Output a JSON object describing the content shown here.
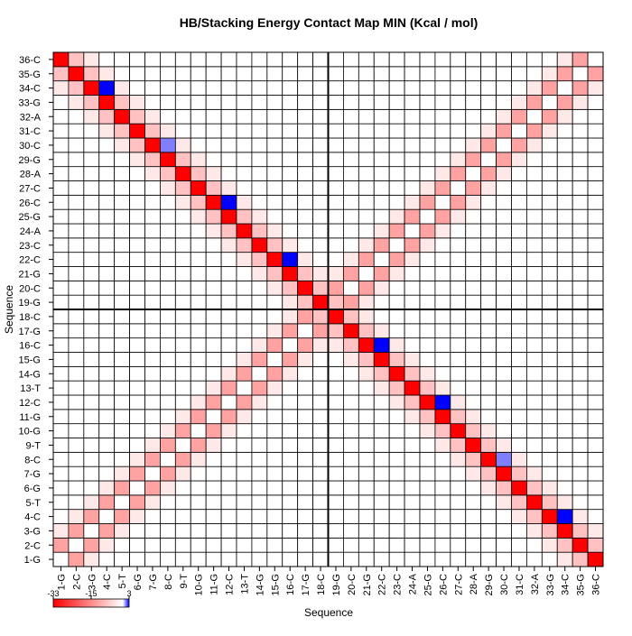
{
  "chart_data": {
    "type": "heatmap",
    "title": "HB/Stacking Energy Contact Map MIN (Kcal / mol)",
    "x_label": "Sequence",
    "y_label": "Sequence",
    "categories": [
      "1-G",
      "2-C",
      "3-G",
      "4-C",
      "5-T",
      "6-G",
      "7-G",
      "8-C",
      "9-T",
      "10-G",
      "11-G",
      "12-C",
      "13-T",
      "14-G",
      "15-G",
      "16-C",
      "17-G",
      "18-C",
      "19-G",
      "20-C",
      "21-G",
      "22-C",
      "23-C",
      "24-A",
      "25-G",
      "26-C",
      "27-C",
      "28-A",
      "29-G",
      "30-C",
      "31-C",
      "32-A",
      "33-G",
      "34-C",
      "35-G",
      "36-C"
    ],
    "zlim": [
      -33,
      3
    ],
    "zticks": [
      -33,
      -15,
      3
    ],
    "low_color": "#ff0000",
    "mid_color": "#ffffff",
    "high_color": "#0000ff",
    "values": [
      [
        0,
        -12,
        -3,
        0,
        0,
        0,
        0,
        0,
        0,
        0,
        0,
        0,
        0,
        0,
        0,
        0,
        0,
        0,
        0,
        0,
        0,
        0,
        0,
        0,
        0,
        0,
        0,
        0,
        0,
        0,
        0,
        0,
        0,
        -3,
        -8,
        -33
      ],
      [
        -12,
        0,
        -12,
        -3,
        0,
        0,
        0,
        0,
        0,
        0,
        0,
        0,
        0,
        0,
        0,
        0,
        0,
        0,
        0,
        0,
        0,
        0,
        0,
        0,
        0,
        0,
        0,
        0,
        0,
        0,
        0,
        0,
        -3,
        -8,
        -33,
        -8
      ],
      [
        -3,
        -12,
        0,
        -12,
        -3,
        0,
        0,
        0,
        0,
        0,
        0,
        0,
        0,
        0,
        0,
        0,
        0,
        0,
        0,
        0,
        0,
        0,
        0,
        0,
        0,
        0,
        0,
        0,
        0,
        0,
        0,
        -3,
        -8,
        -33,
        -8,
        -3
      ],
      [
        0,
        -3,
        -12,
        0,
        -12,
        -3,
        0,
        0,
        0,
        0,
        0,
        0,
        0,
        0,
        0,
        0,
        0,
        0,
        0,
        0,
        0,
        0,
        0,
        0,
        0,
        0,
        0,
        0,
        0,
        0,
        -3,
        -8,
        -33,
        3,
        -3,
        0
      ],
      [
        0,
        0,
        -3,
        -12,
        0,
        -12,
        -3,
        0,
        0,
        0,
        0,
        0,
        0,
        0,
        0,
        0,
        0,
        0,
        0,
        0,
        0,
        0,
        0,
        0,
        0,
        0,
        0,
        0,
        0,
        -3,
        -8,
        -33,
        -8,
        -3,
        0,
        0
      ],
      [
        0,
        0,
        0,
        -3,
        -12,
        0,
        -12,
        -3,
        0,
        0,
        0,
        0,
        0,
        0,
        0,
        0,
        0,
        0,
        0,
        0,
        0,
        0,
        0,
        0,
        0,
        0,
        0,
        0,
        -3,
        -8,
        -33,
        -8,
        -3,
        0,
        0,
        0
      ],
      [
        0,
        0,
        0,
        0,
        -3,
        -12,
        0,
        -12,
        -3,
        0,
        0,
        0,
        0,
        0,
        0,
        0,
        0,
        0,
        0,
        0,
        0,
        0,
        0,
        0,
        0,
        0,
        0,
        -3,
        -8,
        -33,
        -8,
        -3,
        0,
        0,
        0,
        0
      ],
      [
        0,
        0,
        0,
        0,
        0,
        -3,
        -12,
        0,
        -12,
        -3,
        0,
        0,
        0,
        0,
        0,
        0,
        0,
        0,
        0,
        0,
        0,
        0,
        0,
        0,
        0,
        0,
        -3,
        -8,
        -33,
        1.5,
        -3,
        0,
        0,
        0,
        0,
        0
      ],
      [
        0,
        0,
        0,
        0,
        0,
        0,
        -3,
        -12,
        0,
        -12,
        -3,
        0,
        0,
        0,
        0,
        0,
        0,
        0,
        0,
        0,
        0,
        0,
        0,
        0,
        0,
        -3,
        -8,
        -33,
        -8,
        -3,
        0,
        0,
        0,
        0,
        0,
        0
      ],
      [
        0,
        0,
        0,
        0,
        0,
        0,
        0,
        -3,
        -12,
        0,
        -12,
        -3,
        0,
        0,
        0,
        0,
        0,
        0,
        0,
        0,
        0,
        0,
        0,
        0,
        -3,
        -8,
        -33,
        -8,
        -3,
        0,
        0,
        0,
        0,
        0,
        0,
        0
      ],
      [
        0,
        0,
        0,
        0,
        0,
        0,
        0,
        0,
        -3,
        -12,
        0,
        -12,
        -3,
        0,
        0,
        0,
        0,
        0,
        0,
        0,
        0,
        0,
        0,
        -3,
        -8,
        -33,
        -8,
        -3,
        0,
        0,
        0,
        0,
        0,
        0,
        0,
        0
      ],
      [
        0,
        0,
        0,
        0,
        0,
        0,
        0,
        0,
        0,
        -3,
        -12,
        0,
        -12,
        -3,
        0,
        0,
        0,
        0,
        0,
        0,
        0,
        0,
        -3,
        -8,
        -33,
        3,
        -3,
        0,
        0,
        0,
        0,
        0,
        0,
        0,
        0,
        0
      ],
      [
        0,
        0,
        0,
        0,
        0,
        0,
        0,
        0,
        0,
        0,
        -3,
        -12,
        0,
        -12,
        -3,
        0,
        0,
        0,
        0,
        0,
        0,
        -3,
        -8,
        -33,
        -8,
        -3,
        0,
        0,
        0,
        0,
        0,
        0,
        0,
        0,
        0,
        0
      ],
      [
        0,
        0,
        0,
        0,
        0,
        0,
        0,
        0,
        0,
        0,
        0,
        -3,
        -12,
        0,
        -12,
        -3,
        0,
        0,
        0,
        0,
        -3,
        -8,
        -33,
        -8,
        -3,
        0,
        0,
        0,
        0,
        0,
        0,
        0,
        0,
        0,
        0,
        0
      ],
      [
        0,
        0,
        0,
        0,
        0,
        0,
        0,
        0,
        0,
        0,
        0,
        0,
        -3,
        -12,
        0,
        -12,
        -3,
        0,
        0,
        -3,
        -8,
        -33,
        -8,
        -3,
        0,
        0,
        0,
        0,
        0,
        0,
        0,
        0,
        0,
        0,
        0,
        0
      ],
      [
        0,
        0,
        0,
        0,
        0,
        0,
        0,
        0,
        0,
        0,
        0,
        0,
        0,
        -3,
        -12,
        0,
        -12,
        -3,
        -3,
        -8,
        -33,
        3,
        -3,
        0,
        0,
        0,
        0,
        0,
        0,
        0,
        0,
        0,
        0,
        0,
        0,
        0
      ],
      [
        0,
        0,
        0,
        0,
        0,
        0,
        0,
        0,
        0,
        0,
        0,
        0,
        0,
        0,
        -3,
        -12,
        0,
        -12,
        -8,
        -33,
        -8,
        -3,
        0,
        0,
        0,
        0,
        0,
        0,
        0,
        0,
        0,
        0,
        0,
        0,
        0,
        0
      ],
      [
        0,
        0,
        0,
        0,
        0,
        0,
        0,
        0,
        0,
        0,
        0,
        0,
        0,
        0,
        0,
        -3,
        -12,
        -8,
        -33,
        -8,
        -3,
        0,
        0,
        0,
        0,
        0,
        0,
        0,
        0,
        0,
        0,
        0,
        0,
        0,
        0,
        0
      ],
      [
        0,
        0,
        0,
        0,
        0,
        0,
        0,
        0,
        0,
        0,
        0,
        0,
        0,
        0,
        0,
        -3,
        -8,
        -33,
        -8,
        -12,
        -3,
        0,
        0,
        0,
        0,
        0,
        0,
        0,
        0,
        0,
        0,
        0,
        0,
        0,
        0,
        0
      ],
      [
        0,
        0,
        0,
        0,
        0,
        0,
        0,
        0,
        0,
        0,
        0,
        0,
        0,
        0,
        -3,
        -8,
        -33,
        -8,
        -12,
        0,
        -12,
        -3,
        0,
        0,
        0,
        0,
        0,
        0,
        0,
        0,
        0,
        0,
        0,
        0,
        0,
        0
      ],
      [
        0,
        0,
        0,
        0,
        0,
        0,
        0,
        0,
        0,
        0,
        0,
        0,
        0,
        -3,
        -8,
        -33,
        -8,
        -3,
        -3,
        -12,
        0,
        -12,
        -3,
        0,
        0,
        0,
        0,
        0,
        0,
        0,
        0,
        0,
        0,
        0,
        0,
        0
      ],
      [
        0,
        0,
        0,
        0,
        0,
        0,
        0,
        0,
        0,
        0,
        0,
        0,
        -3,
        -8,
        -33,
        3,
        -3,
        0,
        0,
        -3,
        -12,
        0,
        -12,
        -3,
        0,
        0,
        0,
        0,
        0,
        0,
        0,
        0,
        0,
        0,
        0,
        0
      ],
      [
        0,
        0,
        0,
        0,
        0,
        0,
        0,
        0,
        0,
        0,
        0,
        -3,
        -8,
        -33,
        -8,
        -3,
        0,
        0,
        0,
        0,
        -3,
        -12,
        0,
        -12,
        -3,
        0,
        0,
        0,
        0,
        0,
        0,
        0,
        0,
        0,
        0,
        0
      ],
      [
        0,
        0,
        0,
        0,
        0,
        0,
        0,
        0,
        0,
        0,
        -3,
        -8,
        -33,
        -8,
        -3,
        0,
        0,
        0,
        0,
        0,
        0,
        -3,
        -12,
        0,
        -12,
        -3,
        0,
        0,
        0,
        0,
        0,
        0,
        0,
        0,
        0,
        0
      ],
      [
        0,
        0,
        0,
        0,
        0,
        0,
        0,
        0,
        0,
        -3,
        -8,
        -33,
        -8,
        -3,
        0,
        0,
        0,
        0,
        0,
        0,
        0,
        0,
        -3,
        -12,
        0,
        -12,
        -3,
        0,
        0,
        0,
        0,
        0,
        0,
        0,
        0,
        0
      ],
      [
        0,
        0,
        0,
        0,
        0,
        0,
        0,
        0,
        -3,
        -8,
        -33,
        3,
        -3,
        0,
        0,
        0,
        0,
        0,
        0,
        0,
        0,
        0,
        0,
        -3,
        -12,
        0,
        -12,
        -3,
        0,
        0,
        0,
        0,
        0,
        0,
        0,
        0
      ],
      [
        0,
        0,
        0,
        0,
        0,
        0,
        0,
        -3,
        -8,
        -33,
        -8,
        -3,
        0,
        0,
        0,
        0,
        0,
        0,
        0,
        0,
        0,
        0,
        0,
        0,
        -3,
        -12,
        0,
        -12,
        -3,
        0,
        0,
        0,
        0,
        0,
        0,
        0
      ],
      [
        0,
        0,
        0,
        0,
        0,
        0,
        -3,
        -8,
        -33,
        -8,
        -3,
        0,
        0,
        0,
        0,
        0,
        0,
        0,
        0,
        0,
        0,
        0,
        0,
        0,
        0,
        -3,
        -12,
        0,
        -12,
        -3,
        0,
        0,
        0,
        0,
        0,
        0
      ],
      [
        0,
        0,
        0,
        0,
        0,
        -3,
        -8,
        -33,
        -8,
        -3,
        0,
        0,
        0,
        0,
        0,
        0,
        0,
        0,
        0,
        0,
        0,
        0,
        0,
        0,
        0,
        0,
        -3,
        -12,
        0,
        -12,
        -3,
        0,
        0,
        0,
        0,
        0
      ],
      [
        0,
        0,
        0,
        0,
        -3,
        -8,
        -33,
        1.5,
        -3,
        0,
        0,
        0,
        0,
        0,
        0,
        0,
        0,
        0,
        0,
        0,
        0,
        0,
        0,
        0,
        0,
        0,
        0,
        -3,
        -12,
        0,
        -12,
        -3,
        0,
        0,
        0,
        0
      ],
      [
        0,
        0,
        0,
        -3,
        -8,
        -33,
        -8,
        -3,
        0,
        0,
        0,
        0,
        0,
        0,
        0,
        0,
        0,
        0,
        0,
        0,
        0,
        0,
        0,
        0,
        0,
        0,
        0,
        0,
        -3,
        -12,
        0,
        -12,
        -3,
        0,
        0,
        0
      ],
      [
        0,
        0,
        -3,
        -8,
        -33,
        -8,
        -3,
        0,
        0,
        0,
        0,
        0,
        0,
        0,
        0,
        0,
        0,
        0,
        0,
        0,
        0,
        0,
        0,
        0,
        0,
        0,
        0,
        0,
        0,
        -3,
        -12,
        0,
        -12,
        -3,
        0,
        0
      ],
      [
        0,
        -3,
        -8,
        -33,
        -8,
        -3,
        0,
        0,
        0,
        0,
        0,
        0,
        0,
        0,
        0,
        0,
        0,
        0,
        0,
        0,
        0,
        0,
        0,
        0,
        0,
        0,
        0,
        0,
        0,
        0,
        -3,
        -12,
        0,
        -12,
        -3,
        0
      ],
      [
        -3,
        -8,
        -33,
        3,
        -3,
        0,
        0,
        0,
        0,
        0,
        0,
        0,
        0,
        0,
        0,
        0,
        0,
        0,
        0,
        0,
        0,
        0,
        0,
        0,
        0,
        0,
        0,
        0,
        0,
        0,
        0,
        -3,
        -12,
        0,
        -12,
        -3
      ],
      [
        -8,
        -33,
        -8,
        -3,
        0,
        0,
        0,
        0,
        0,
        0,
        0,
        0,
        0,
        0,
        0,
        0,
        0,
        0,
        0,
        0,
        0,
        0,
        0,
        0,
        0,
        0,
        0,
        0,
        0,
        0,
        0,
        0,
        -3,
        -12,
        0,
        -12
      ],
      [
        -33,
        -8,
        -3,
        0,
        0,
        0,
        0,
        0,
        0,
        0,
        0,
        0,
        0,
        0,
        0,
        0,
        0,
        0,
        0,
        0,
        0,
        0,
        0,
        0,
        0,
        0,
        0,
        0,
        0,
        0,
        0,
        0,
        0,
        -3,
        -12,
        0
      ]
    ]
  }
}
